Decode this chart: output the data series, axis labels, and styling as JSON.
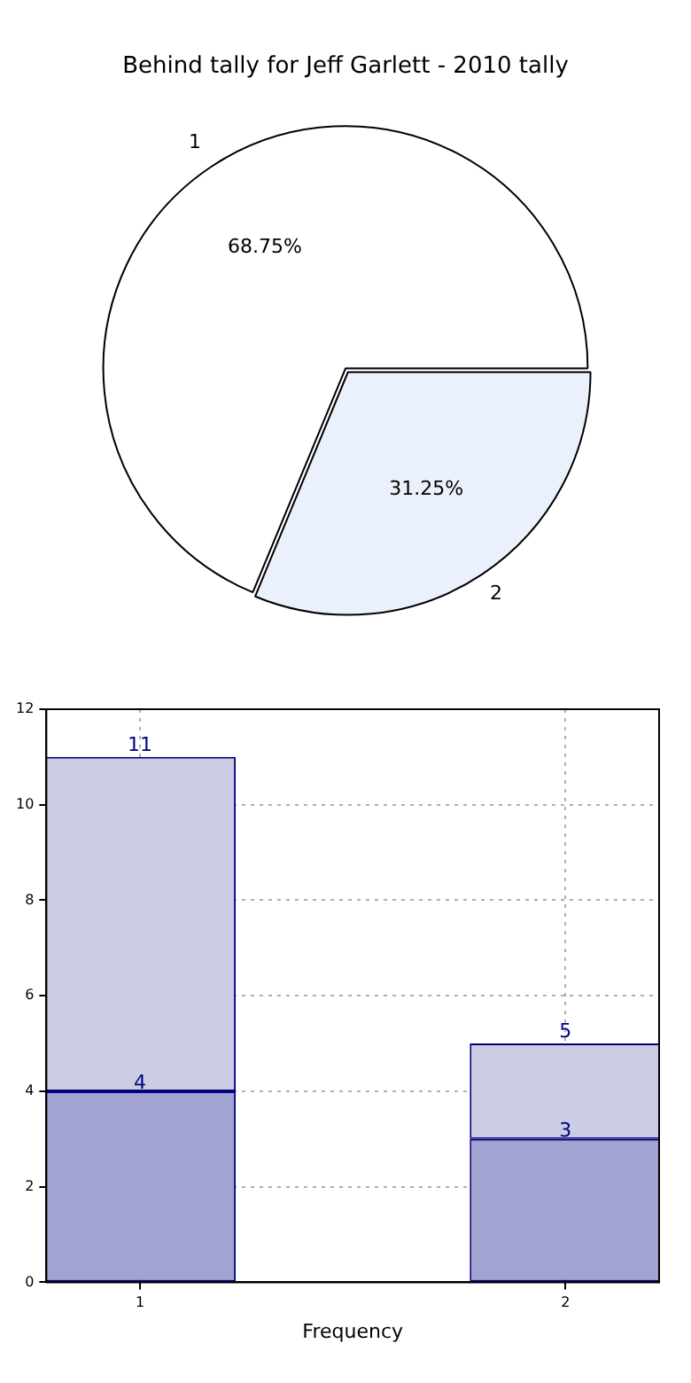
{
  "chart_data": [
    {
      "type": "pie",
      "title": "Behind tally for Jeff Garlett - 2010 tally",
      "categories": [
        "1",
        "2"
      ],
      "values": [
        68.75,
        31.25
      ],
      "colors": [
        "#ffffff",
        "#eaf0fc"
      ],
      "value_labels": [
        "68.75%",
        "31.25%"
      ],
      "legend": false
    },
    {
      "type": "bar",
      "xlabel": "Frequency",
      "x": [
        1,
        2
      ],
      "xlim": [
        0.78,
        2.22
      ],
      "xticks": [
        1,
        2
      ],
      "ylim": [
        0,
        12
      ],
      "yticks": [
        0,
        2,
        4,
        6,
        8,
        10,
        12
      ],
      "grid": true,
      "legend": false,
      "stacked": true,
      "totals": [
        "11",
        "5"
      ],
      "series": [
        {
          "color": "#a2a3d0",
          "values": [
            4,
            3
          ],
          "value_labels": [
            "4",
            "3"
          ]
        },
        {
          "color": "#ccccE4",
          "values": [
            7,
            2
          ],
          "value_labels": [
            null,
            null
          ]
        }
      ]
    }
  ]
}
